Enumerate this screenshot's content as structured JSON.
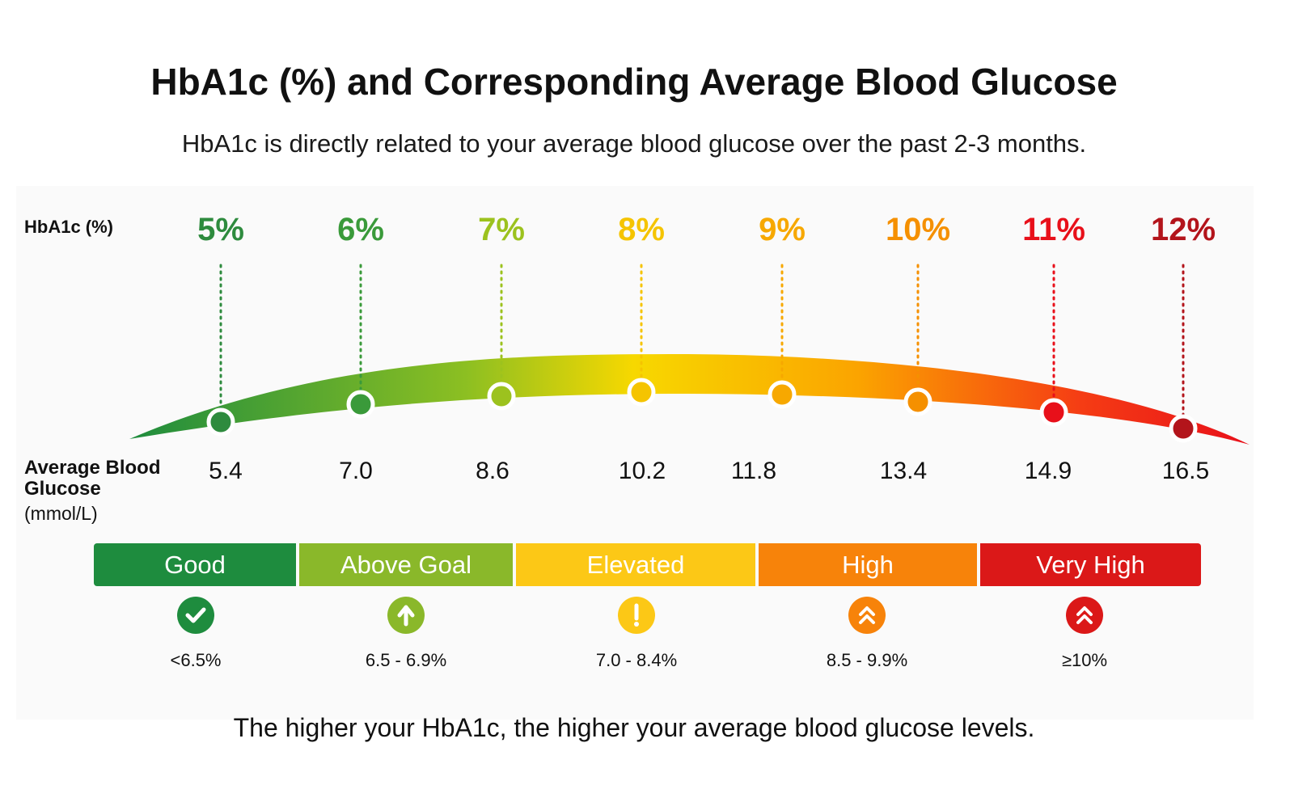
{
  "title": "HbA1c (%) and Corresponding Average Blood Glucose",
  "subtitle": "HbA1c is directly related to your average blood glucose over the past 2-3 months.",
  "hba1c_label": "HbA1c (%)",
  "glucose_label": "Average Blood Glucose",
  "glucose_unit": "(mmol/L)",
  "markers": [
    {
      "hba1c": "5%",
      "glucose": "5.4",
      "color": "#2e8b3e"
    },
    {
      "hba1c": "6%",
      "glucose": "7.0",
      "color": "#3a9a3a"
    },
    {
      "hba1c": "7%",
      "glucose": "8.6",
      "color": "#9cc21e"
    },
    {
      "hba1c": "8%",
      "glucose": "10.2",
      "color": "#f5c400"
    },
    {
      "hba1c": "9%",
      "glucose": "11.8",
      "color": "#f7a800"
    },
    {
      "hba1c": "10%",
      "glucose": "13.4",
      "color": "#f59000"
    },
    {
      "hba1c": "11%",
      "glucose": "14.9",
      "color": "#e8101a"
    },
    {
      "hba1c": "12%",
      "glucose": "16.5",
      "color": "#b3141b"
    }
  ],
  "categories": [
    {
      "label": "Good",
      "range": "<6.5%",
      "icon": "check-icon",
      "color": "#1e8c3e"
    },
    {
      "label": "Above Goal",
      "range": "6.5 - 6.9%",
      "icon": "arrow-up-icon",
      "color": "#8ab82a"
    },
    {
      "label": "Elevated",
      "range": "7.0 - 8.4%",
      "icon": "exclamation-icon",
      "color": "#fcc816"
    },
    {
      "label": "High",
      "range": "8.5 - 9.9%",
      "icon": "double-chevron-up-icon",
      "color": "#f7830a"
    },
    {
      "label": "Very High",
      "range": "≥10%",
      "icon": "double-chevron-up-icon",
      "color": "#db1818"
    }
  ],
  "footer": "The higher your HbA1c, the higher your average blood glucose levels."
}
